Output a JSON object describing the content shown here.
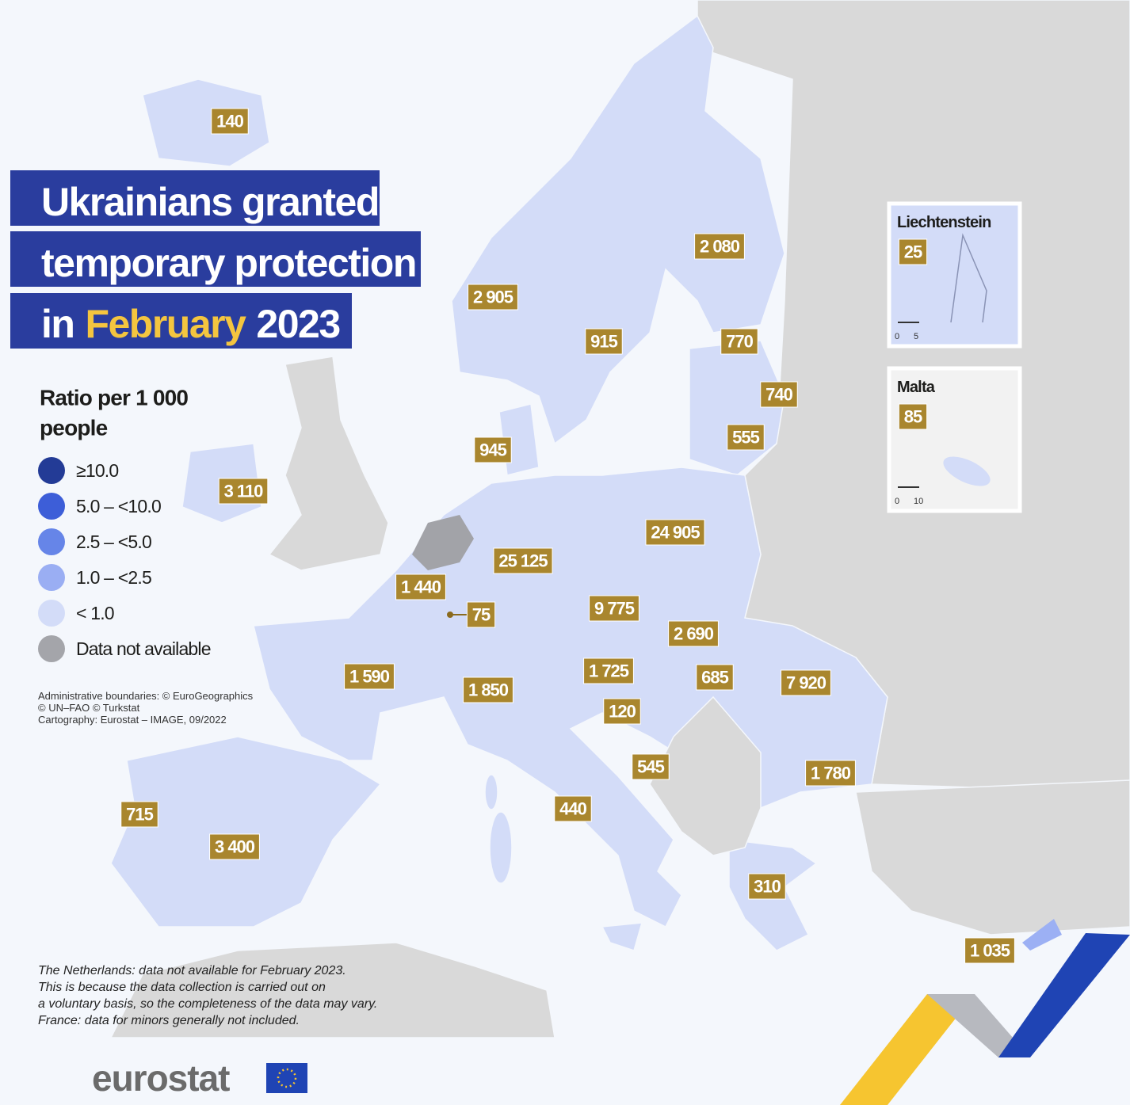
{
  "title": {
    "line1": "Ukrainians granted",
    "line2": "temporary protection",
    "line3_start": "in",
    "line3_highlight": "February",
    "line3_end": "2023"
  },
  "legend": {
    "title_lines": [
      "Ratio per 1 000",
      "people"
    ],
    "items": [
      {
        "label": "≥10.0",
        "color": "#233b96"
      },
      {
        "label": "5.0 – <10.0",
        "color": "#3d5ed8"
      },
      {
        "label": "2.5 – <5.0",
        "color": "#6685e8"
      },
      {
        "label": "1.0 – <2.5",
        "color": "#9aaef3"
      },
      {
        "label": "< 1.0",
        "color": "#d3dcf8"
      },
      {
        "label": "Data not available",
        "color": "#a4a5aa"
      }
    ]
  },
  "credits": [
    "Administrative boundaries: © EuroGeographics",
    "© UN–FAO © Turkstat",
    "Cartography: Eurostat – IMAGE, 09/2022"
  ],
  "labels": [
    "140",
    "2 905",
    "915",
    "2 080",
    "770",
    "740",
    "555",
    "945",
    "3 110",
    "24 905",
    "25 125",
    "1 440",
    "75",
    "9 775",
    "2 690",
    "1 590",
    "1 850",
    "1 725",
    "685",
    "7 920",
    "120",
    "545",
    "1 780",
    "715",
    "3 400",
    "440",
    "310",
    "1 035"
  ],
  "insets": [
    {
      "title": "Liechtenstein",
      "value": "25",
      "scale": [
        "0",
        "5"
      ]
    },
    {
      "title": "Malta",
      "value": "85",
      "scale": [
        "0",
        "10"
      ]
    }
  ],
  "note": [
    "The Netherlands: data not available for February 2023.",
    "This is because the data collection is carried out on",
    "a voluntary basis, so the completeness of the data may vary.",
    "France: data for minors generally not included."
  ],
  "logo": "eurostat"
}
